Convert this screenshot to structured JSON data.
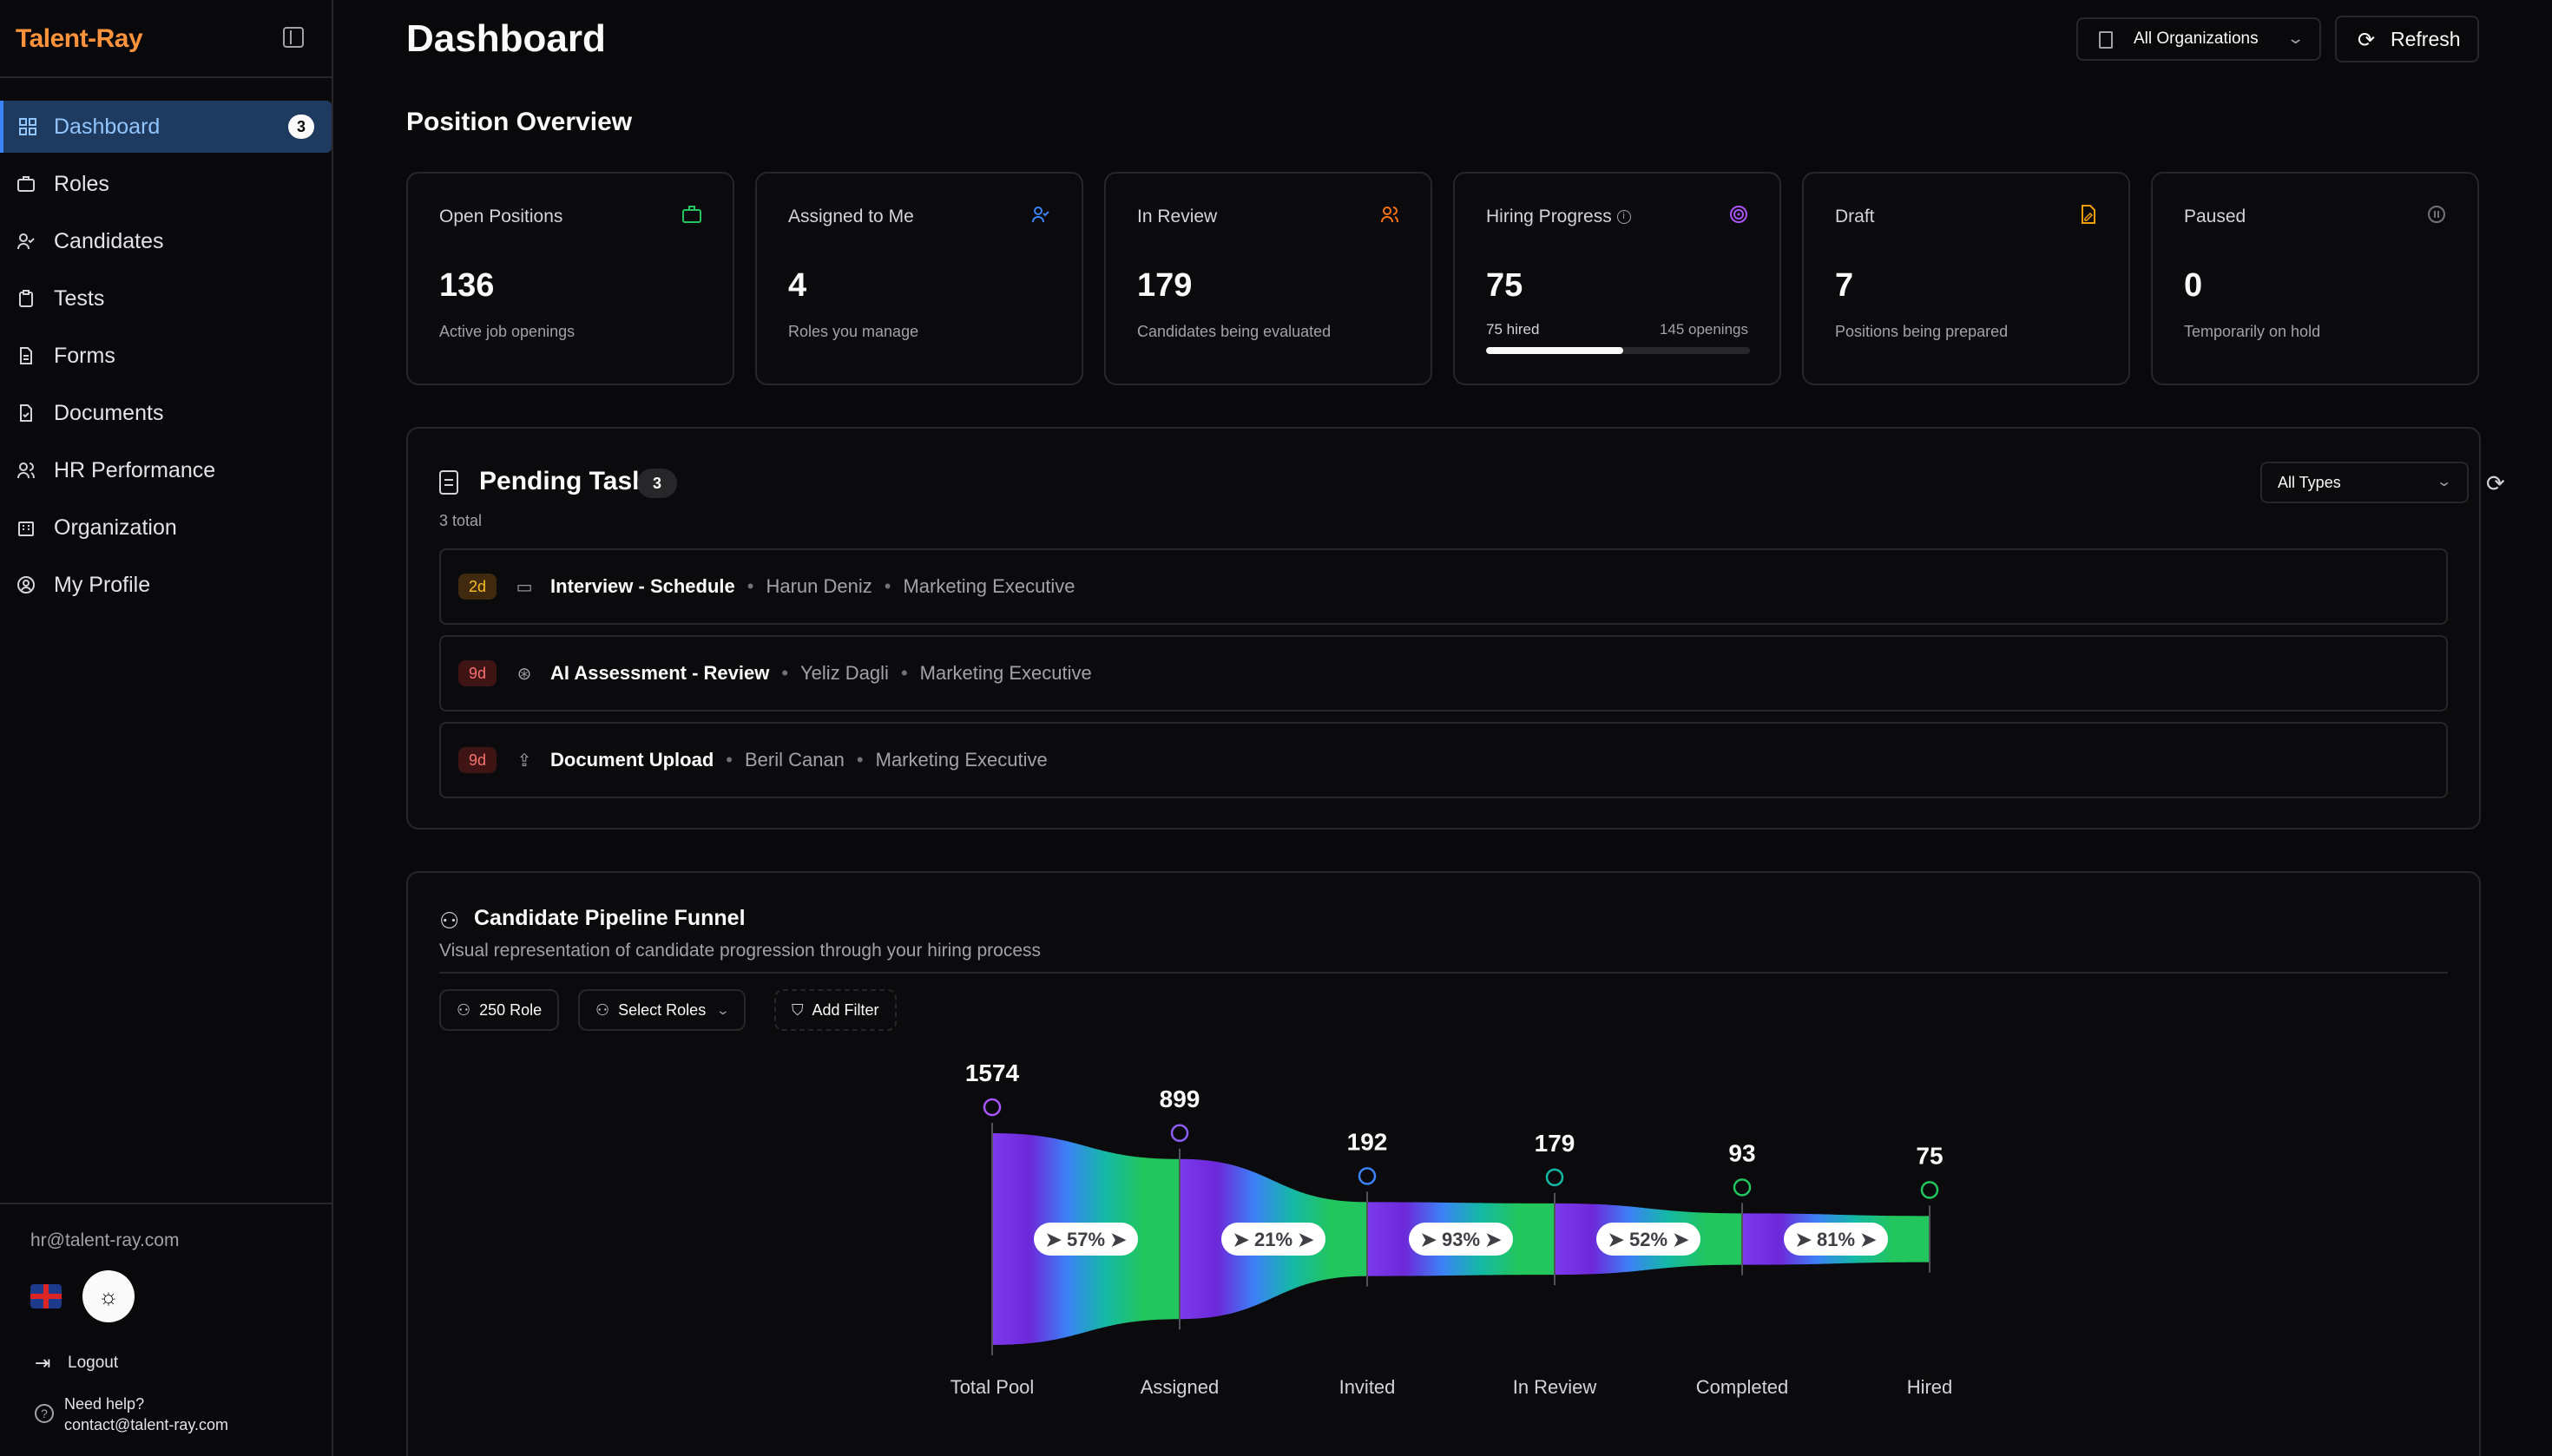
{
  "brand": "Talent-Ray",
  "sidebar": {
    "items": [
      {
        "label": "Dashboard",
        "badge": "3",
        "icon": "grid-icon"
      },
      {
        "label": "Roles",
        "icon": "briefcase-icon"
      },
      {
        "label": "Candidates",
        "icon": "user-check-icon"
      },
      {
        "label": "Tests",
        "icon": "clipboard-icon"
      },
      {
        "label": "Forms",
        "icon": "file-text-icon"
      },
      {
        "label": "Documents",
        "icon": "file-check-icon"
      },
      {
        "label": "HR Performance",
        "icon": "users-icon"
      },
      {
        "label": "Organization",
        "icon": "building-icon"
      },
      {
        "label": "My Profile",
        "icon": "user-circle-icon"
      }
    ],
    "email": "hr@talent-ray.com",
    "logout": "Logout",
    "help_title": "Need help?",
    "help_email": "contact@talent-ray.com"
  },
  "header": {
    "title": "Dashboard",
    "org_select": "All Organizations",
    "refresh": "Refresh"
  },
  "overview": {
    "title": "Position Overview",
    "cards": [
      {
        "label": "Open Positions",
        "value": "136",
        "sub": "Active job openings",
        "icon": "briefcase-icon",
        "color": "#22c55e"
      },
      {
        "label": "Assigned to Me",
        "value": "4",
        "sub": "Roles you manage",
        "icon": "user-check-icon",
        "color": "#3b82f6"
      },
      {
        "label": "In Review",
        "value": "179",
        "sub": "Candidates being evaluated",
        "icon": "users-icon",
        "color": "#f97316"
      },
      {
        "label": "Hiring Progress",
        "value": "75",
        "progress_left": "75 hired",
        "progress_right": "145 openings",
        "progress": 0.52,
        "icon": "target-icon",
        "color": "#a855f7"
      },
      {
        "label": "Draft",
        "value": "7",
        "sub": "Positions being prepared",
        "icon": "file-edit-icon",
        "color": "#f59e0b"
      },
      {
        "label": "Paused",
        "value": "0",
        "sub": "Temporarily on hold",
        "icon": "pause-circle-icon",
        "color": "#71717a"
      }
    ]
  },
  "tasks": {
    "title": "Pending Tasks",
    "count": "3",
    "total": "3 total",
    "filter": "All Types",
    "rows": [
      {
        "age": "2d",
        "icon": "video-icon",
        "name": "Interview - Schedule",
        "person": "Harun Deniz",
        "role": "Marketing Executive"
      },
      {
        "age": "9d",
        "icon": "brain-icon",
        "name": "AI Assessment - Review",
        "person": "Yeliz Dagli",
        "role": "Marketing Executive"
      },
      {
        "age": "9d",
        "icon": "upload-icon",
        "name": "Document Upload",
        "person": "Beril Canan",
        "role": "Marketing Executive"
      }
    ]
  },
  "funnel": {
    "title": "Candidate Pipeline Funnel",
    "description": "Visual representation of candidate progression through your hiring process",
    "chip_roles_count": "250 Role",
    "chip_select_roles": "Select Roles",
    "chip_add_filter": "Add Filter",
    "stages": [
      {
        "label": "Total Pool",
        "value": 1574,
        "icon": "users-icon",
        "color": "#a855f7"
      },
      {
        "label": "Assigned",
        "value": 899,
        "icon": "target-icon",
        "color": "#8b5cf6"
      },
      {
        "label": "Invited",
        "value": 192,
        "icon": "mail-icon",
        "color": "#3b82f6"
      },
      {
        "label": "In Review",
        "value": 179,
        "icon": "clipboard-check-icon",
        "color": "#14b8a6"
      },
      {
        "label": "Completed",
        "value": 93,
        "icon": "check-circle-icon",
        "color": "#22c55e"
      },
      {
        "label": "Hired",
        "value": 75,
        "icon": "briefcase-icon",
        "color": "#22c55e"
      }
    ],
    "conversions": [
      "57%",
      "21%",
      "93%",
      "52%",
      "81%"
    ]
  }
}
